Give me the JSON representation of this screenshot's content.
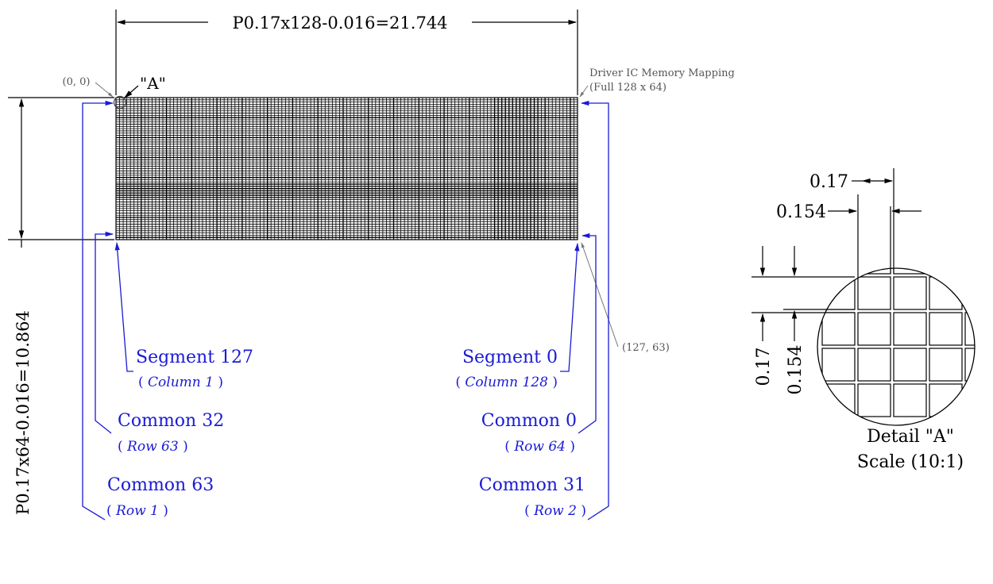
{
  "top_dimension": "P0.17x128-0.016=21.744",
  "side_dimension": "P0.17x64-0.016=10.864",
  "origin_label": "(0, 0)",
  "detail_marker": "\"A\"",
  "end_label": "(127, 63)",
  "memory_note": {
    "line1": "Driver IC Memory Mapping",
    "line2": "(Full 128 x 64)"
  },
  "left_labels": {
    "segment": "Segment 127",
    "segment_sub": "Column 1",
    "common_a": "Common 32",
    "common_a_sub": "Row 63",
    "common_b": "Common 63",
    "common_b_sub": "Row 1"
  },
  "right_labels": {
    "segment": "Segment 0",
    "segment_sub": "Column 128",
    "common_a": "Common 0",
    "common_a_sub": "Row 64",
    "common_b": "Common 31",
    "common_b_sub": "Row 2"
  },
  "detail": {
    "pitch_h": "0.17",
    "size_h": "0.154",
    "pitch_v": "0.17",
    "size_v": "0.154",
    "title": "Detail \"A\"",
    "scale": "Scale (10:1)"
  },
  "pixel_matrix": {
    "columns": 128,
    "rows": 64
  },
  "colors": {
    "annotation_blue": "#1a1ad6",
    "line_black": "#000000",
    "note_gray": "#555555"
  }
}
